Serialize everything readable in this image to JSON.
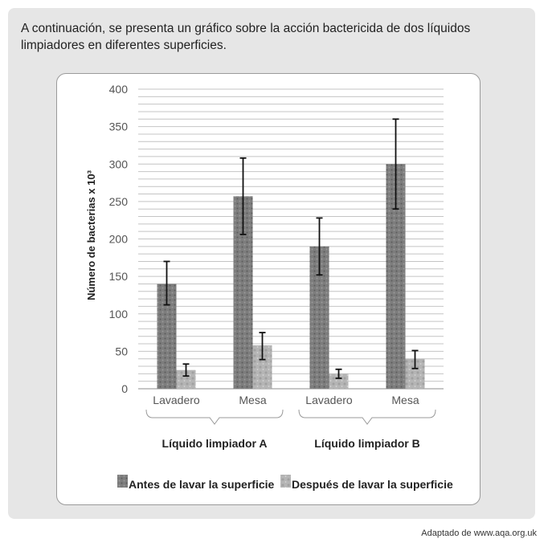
{
  "intro_text": "A continuación, se presenta un gráfico sobre la acción bactericida de dos líquidos limpiadores en diferentes superficies.",
  "credit": "Adaptado de www.aqa.org.uk",
  "chart_data": {
    "type": "bar",
    "ylabel": "Número de bacterias x 10³",
    "ylim": [
      0,
      400
    ],
    "yticks": [
      "0",
      "50",
      "100",
      "150",
      "200",
      "250",
      "300",
      "350",
      "400"
    ],
    "groups": [
      {
        "name": "Líquido limpiador A",
        "categories": [
          "Lavadero",
          "Mesa"
        ]
      },
      {
        "name": "Líquido limpiador B",
        "categories": [
          "Lavadero",
          "Mesa"
        ]
      }
    ],
    "categories": [
      "Lavadero",
      "Mesa",
      "Lavadero",
      "Mesa"
    ],
    "series": [
      {
        "name": "Antes de lavar la superficie",
        "values": [
          140,
          257,
          190,
          300
        ],
        "error_low": [
          112,
          206,
          152,
          240
        ],
        "error_high": [
          170,
          308,
          228,
          360
        ],
        "color": "#8a8a8a"
      },
      {
        "name": "Después de lavar la superficie",
        "values": [
          25,
          58,
          20,
          40
        ],
        "error_low": [
          17,
          39,
          14,
          27
        ],
        "error_high": [
          33,
          75,
          26,
          51
        ],
        "color": "#bdbdbd"
      }
    ],
    "grid": true,
    "legend": "bottom"
  }
}
